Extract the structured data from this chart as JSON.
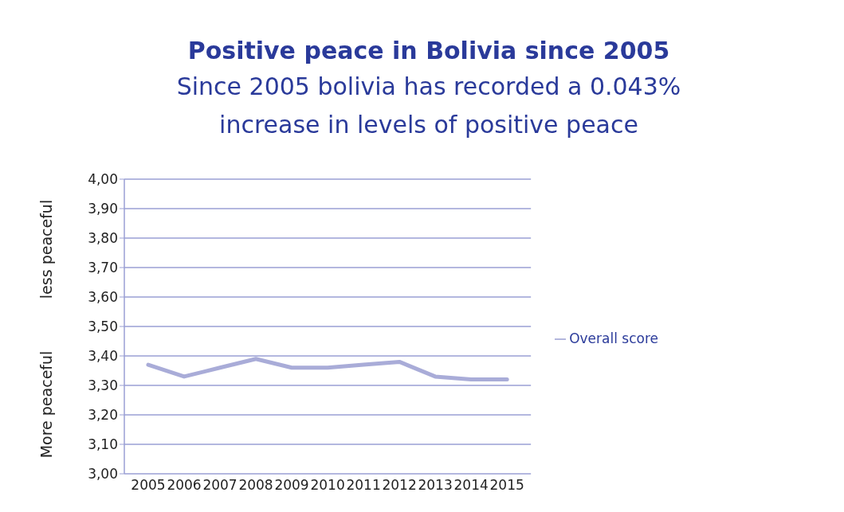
{
  "chart_data": {
    "type": "line",
    "title": "Positive peace in Bolivia since 2005",
    "subtitle": "Since 2005 bolivia has recorded a 0.043% increase in levels of positive peace",
    "ylabel": "More peaceful",
    "annotations": [
      "less peaceful"
    ],
    "categories": [
      "2005",
      "2006",
      "2007",
      "2008",
      "2009",
      "2010",
      "2011",
      "2012",
      "2013",
      "2014",
      "2015"
    ],
    "series": [
      {
        "name": "Overall score",
        "color": "#a9acd8",
        "values": [
          3.37,
          3.33,
          3.36,
          3.39,
          3.36,
          3.36,
          3.37,
          3.38,
          3.33,
          3.32,
          3.32
        ]
      }
    ],
    "ylim": [
      3,
      4
    ],
    "yticks": [
      {
        "value": 3,
        "label": "3,00"
      },
      {
        "value": 3.1,
        "label": "3,10"
      },
      {
        "value": 3.2,
        "label": "3,20"
      },
      {
        "value": 3.3,
        "label": "3,30"
      },
      {
        "value": 3.4,
        "label": "3,40"
      },
      {
        "value": 3.5,
        "label": "3,50"
      },
      {
        "value": 3.6,
        "label": "3,60"
      },
      {
        "value": 3.7,
        "label": "3,70"
      },
      {
        "value": 3.8,
        "label": "3,80"
      },
      {
        "value": 3.9,
        "label": "3,90"
      },
      {
        "value": 4,
        "label": "4,00"
      }
    ],
    "grid": "y",
    "legend": "right",
    "marker": "none",
    "line_style": "solid"
  }
}
